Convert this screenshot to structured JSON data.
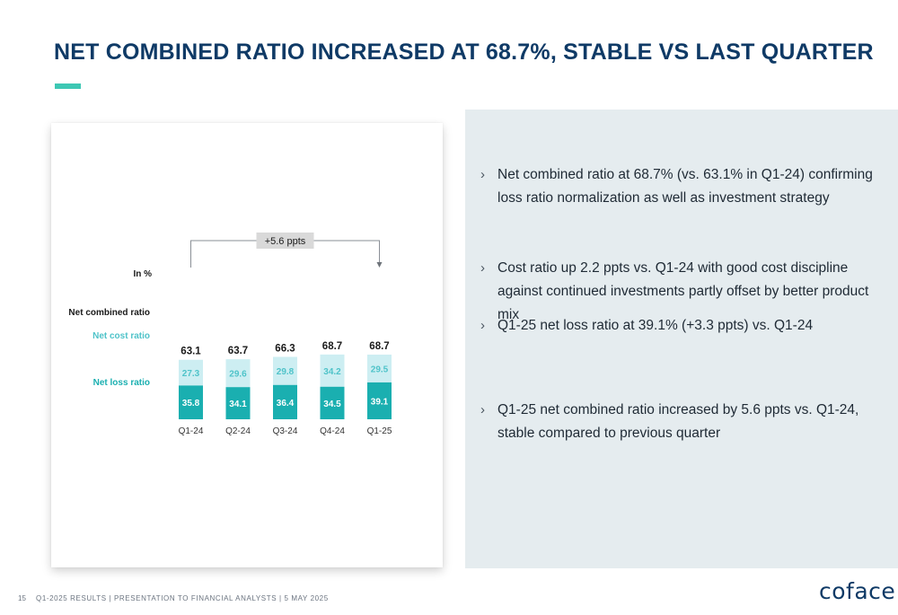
{
  "title": "NET COMBINED RATIO INCREASED AT 68.7%, STABLE VS LAST QUARTER",
  "colors": {
    "title": "#0f3a66",
    "accent": "#3dc8b4",
    "loss_bar": "#1aafb0",
    "cost_bar": "#cdeef2",
    "cost_label": "#4fc3c9",
    "panel_bg": "#e5ecef"
  },
  "chart_data": {
    "type": "bar",
    "stacked": true,
    "unit_label": "In %",
    "categories": [
      "Q1-24",
      "Q2-24",
      "Q3-24",
      "Q4-24",
      "Q1-25"
    ],
    "series": [
      {
        "name": "Net loss ratio",
        "values": [
          35.8,
          34.1,
          36.4,
          34.5,
          39.1
        ]
      },
      {
        "name": "Net cost ratio",
        "values": [
          27.3,
          29.6,
          29.8,
          34.2,
          29.5
        ]
      }
    ],
    "totals_label": "Net combined ratio",
    "totals": [
      63.1,
      63.7,
      66.3,
      68.7,
      68.7
    ],
    "annotation": "+5.6 ppts",
    "annotation_from": "Q1-24",
    "annotation_to": "Q1-25",
    "ylim": [
      0,
      70
    ],
    "grid": false
  },
  "bullets": [
    {
      "text": "Net combined ratio at 68.7% (vs. 63.1% in Q1-24) confirming loss ratio normalization as well as investment strategy"
    },
    {
      "text": "Cost ratio up 2.2 ppts vs. Q1-24 with good cost discipline against continued investments partly offset by better product mix"
    },
    {
      "text": "Q1-25 net loss ratio at 39.1% (+3.3 ppts) vs. Q1-24"
    },
    {
      "text": "Q1-25 net combined ratio increased by 5.6 ppts vs. Q1-24, stable compared to previous quarter"
    }
  ],
  "bullet_glyph": "›",
  "footer": {
    "page_number": "15",
    "text": "Q1-2025 RESULTS | PRESENTATION TO FINANCIAL ANALYSTS | 5 MAY 2025"
  },
  "logo": {
    "text": "coface"
  }
}
